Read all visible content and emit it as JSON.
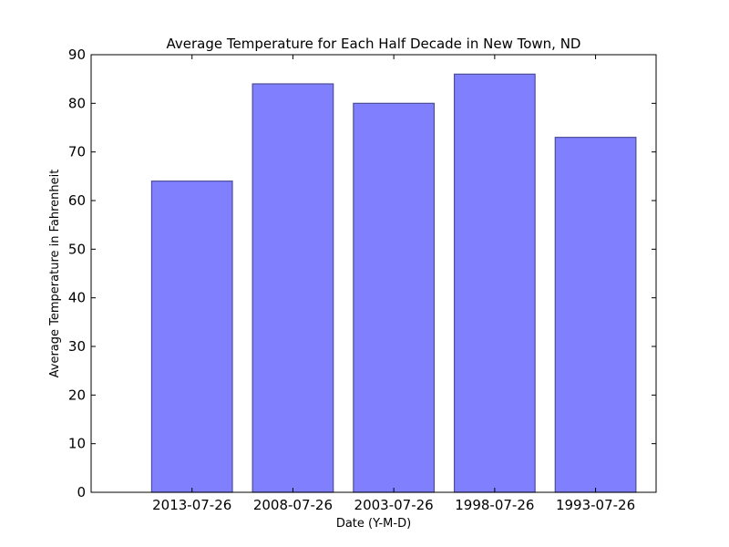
{
  "chart_data": {
    "type": "bar",
    "title": "Average Temperature for Each Half Decade in New Town, ND",
    "xlabel": "Date (Y-M-D)",
    "ylabel": "Average Temperature in Fahrenheit",
    "categories": [
      "2013-07-26",
      "2008-07-26",
      "2003-07-26",
      "1998-07-26",
      "1993-07-26"
    ],
    "values": [
      64,
      84,
      80,
      86,
      73
    ],
    "ylim": [
      0,
      90
    ],
    "yticks": [
      0,
      10,
      20,
      30,
      40,
      50,
      60,
      70,
      80,
      90
    ],
    "grid": false,
    "bar_color": "#8080ff",
    "bar_edge_color": "#4d4d99"
  }
}
